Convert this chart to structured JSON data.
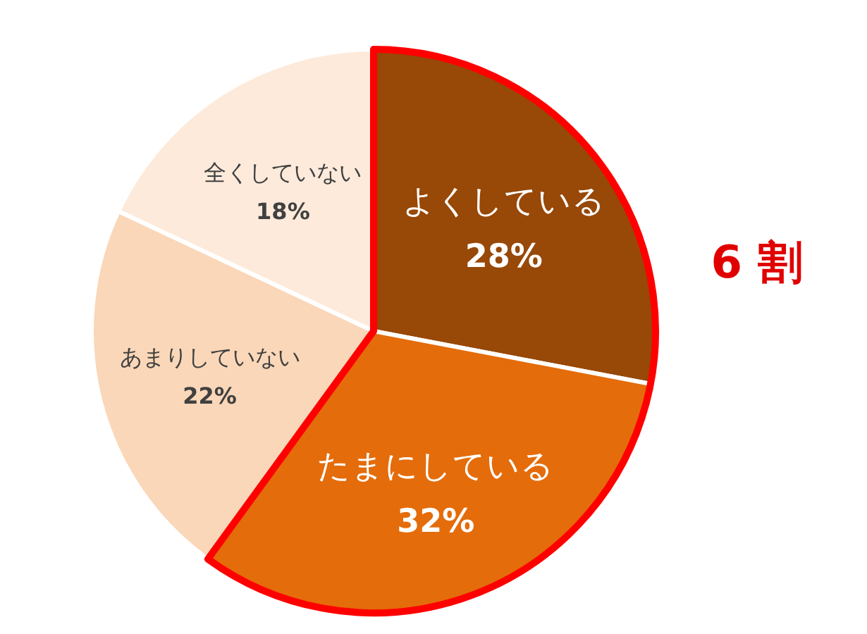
{
  "chart_data": {
    "type": "pie",
    "categories": [
      "よくしている",
      "たまにしている",
      "あまりしていない",
      "全くしていない"
    ],
    "values": [
      28,
      32,
      22,
      18
    ],
    "colors": [
      "#984807",
      "#e46c0a",
      "#fad7b8",
      "#fdeada"
    ],
    "value_labels": [
      "28%",
      "32%",
      "22%",
      "18%"
    ],
    "annotations": [
      "6 割"
    ]
  }
}
